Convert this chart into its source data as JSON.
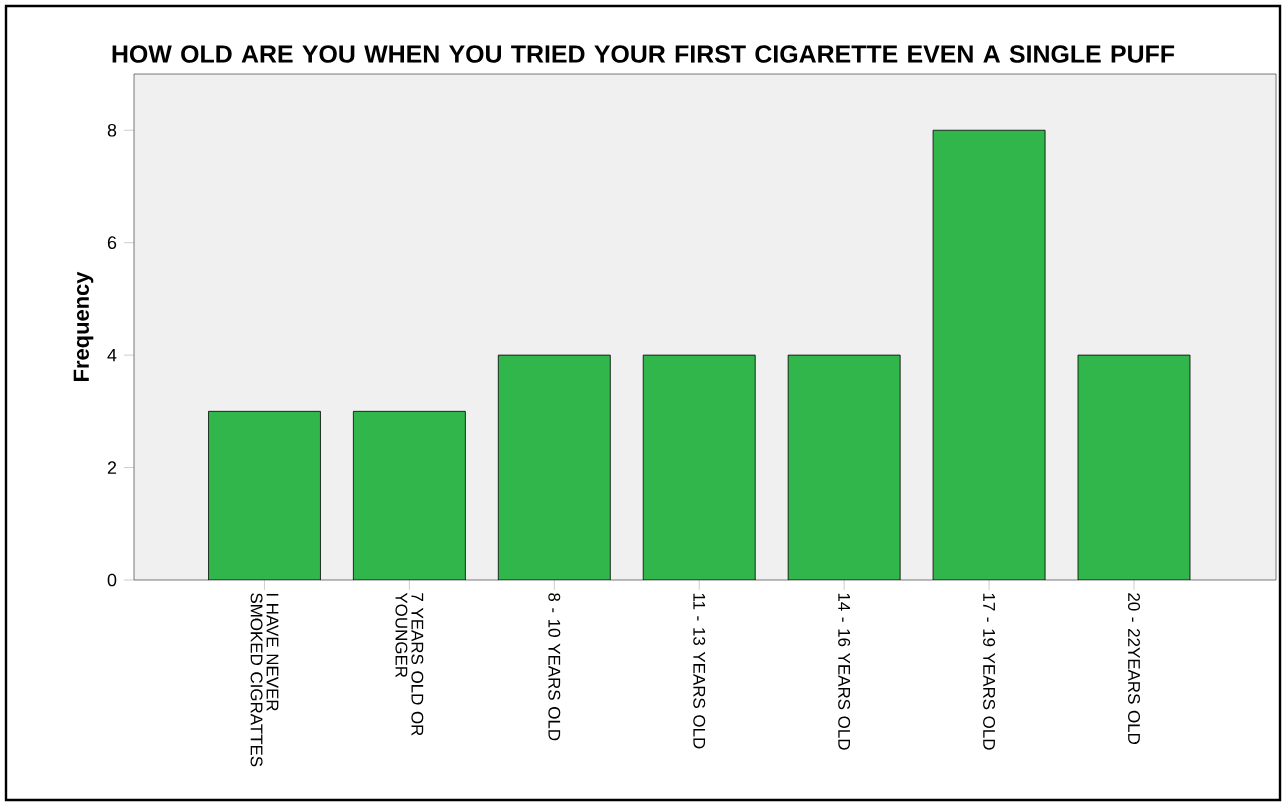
{
  "chart_data": {
    "type": "bar",
    "title": "HOW OLD ARE YOU WHEN YOU TRIED YOUR FIRST CIGARETTE EVEN A SINGLE PUFF",
    "ylabel": "Frequency",
    "categories": [
      "I HAVE NEVER SMOKED CIGRATTES",
      "7 YEARS OLD OR YOUNGER",
      "8 - 10 YEARS OLD",
      "11 - 13 YEARS OLD",
      "14 - 16 YEARS OLD",
      "17 - 19 YEARS OLD",
      "20 - 22YEARS OLD"
    ],
    "values": [
      3,
      3,
      4,
      4,
      4,
      8,
      4
    ],
    "color": "#31b64b",
    "ylim": [
      0,
      9
    ],
    "yticks": [
      0,
      2,
      4,
      6,
      8
    ],
    "grid": false
  }
}
